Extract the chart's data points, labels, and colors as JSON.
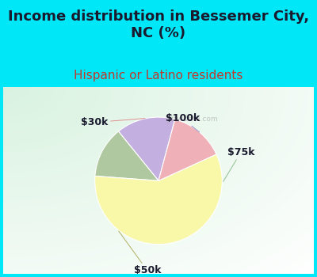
{
  "title": "Income distribution in Bessemer City,\nNC (%)",
  "subtitle": "Hispanic or Latino residents",
  "labels": [
    "$100k",
    "$75k",
    "$50k",
    "$30k"
  ],
  "sizes": [
    15,
    13,
    58,
    14
  ],
  "colors": [
    "#c4b0e0",
    "#b0c8a0",
    "#f8f8a8",
    "#f0b0b8"
  ],
  "title_color": "#1a1a2e",
  "subtitle_color": "#c0392b",
  "background_cyan": "#00e8f8",
  "title_fontsize": 13,
  "subtitle_fontsize": 11,
  "label_fontsize": 9,
  "startangle": 75,
  "watermark": "City-Data.com"
}
